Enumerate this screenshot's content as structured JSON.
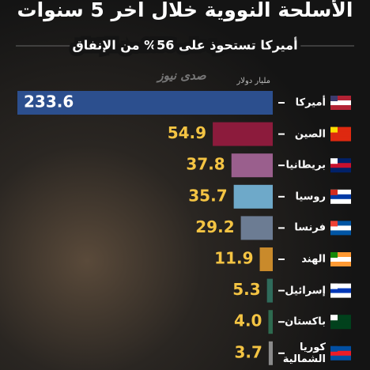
{
  "chart_data": {
    "type": "hbar",
    "title": "الأسلحة النووية خلال اخر 5 سنوات",
    "subtitle": "أميركا تستحوذ على 56% من الإنفاق",
    "unit_label": "مليار دولار",
    "source_logo": "صدى نيوز",
    "categories": [
      "أميركا",
      "الصين",
      "بريطانيا",
      "روسيا",
      "فرنسا",
      "الهند",
      "إسرائيل",
      "باكستان",
      "كوريا الشمالية"
    ],
    "values": [
      233.6,
      54.9,
      37.8,
      35.7,
      29.2,
      11.9,
      5.3,
      4.0,
      3.7
    ],
    "value_labels": [
      "233.6",
      "54.9",
      "37.8",
      "35.7",
      "29.2",
      "11.9",
      "5.3",
      "4.0",
      "3.7"
    ],
    "colors": [
      "#2c4f8e",
      "#8c1b3c",
      "#9a5f8d",
      "#6ea9c9",
      "#6c7c93",
      "#c98a2b",
      "#2f6b5b",
      "#2e6a4f",
      "#8a8a8a"
    ],
    "label_color": "#f4c443"
  }
}
